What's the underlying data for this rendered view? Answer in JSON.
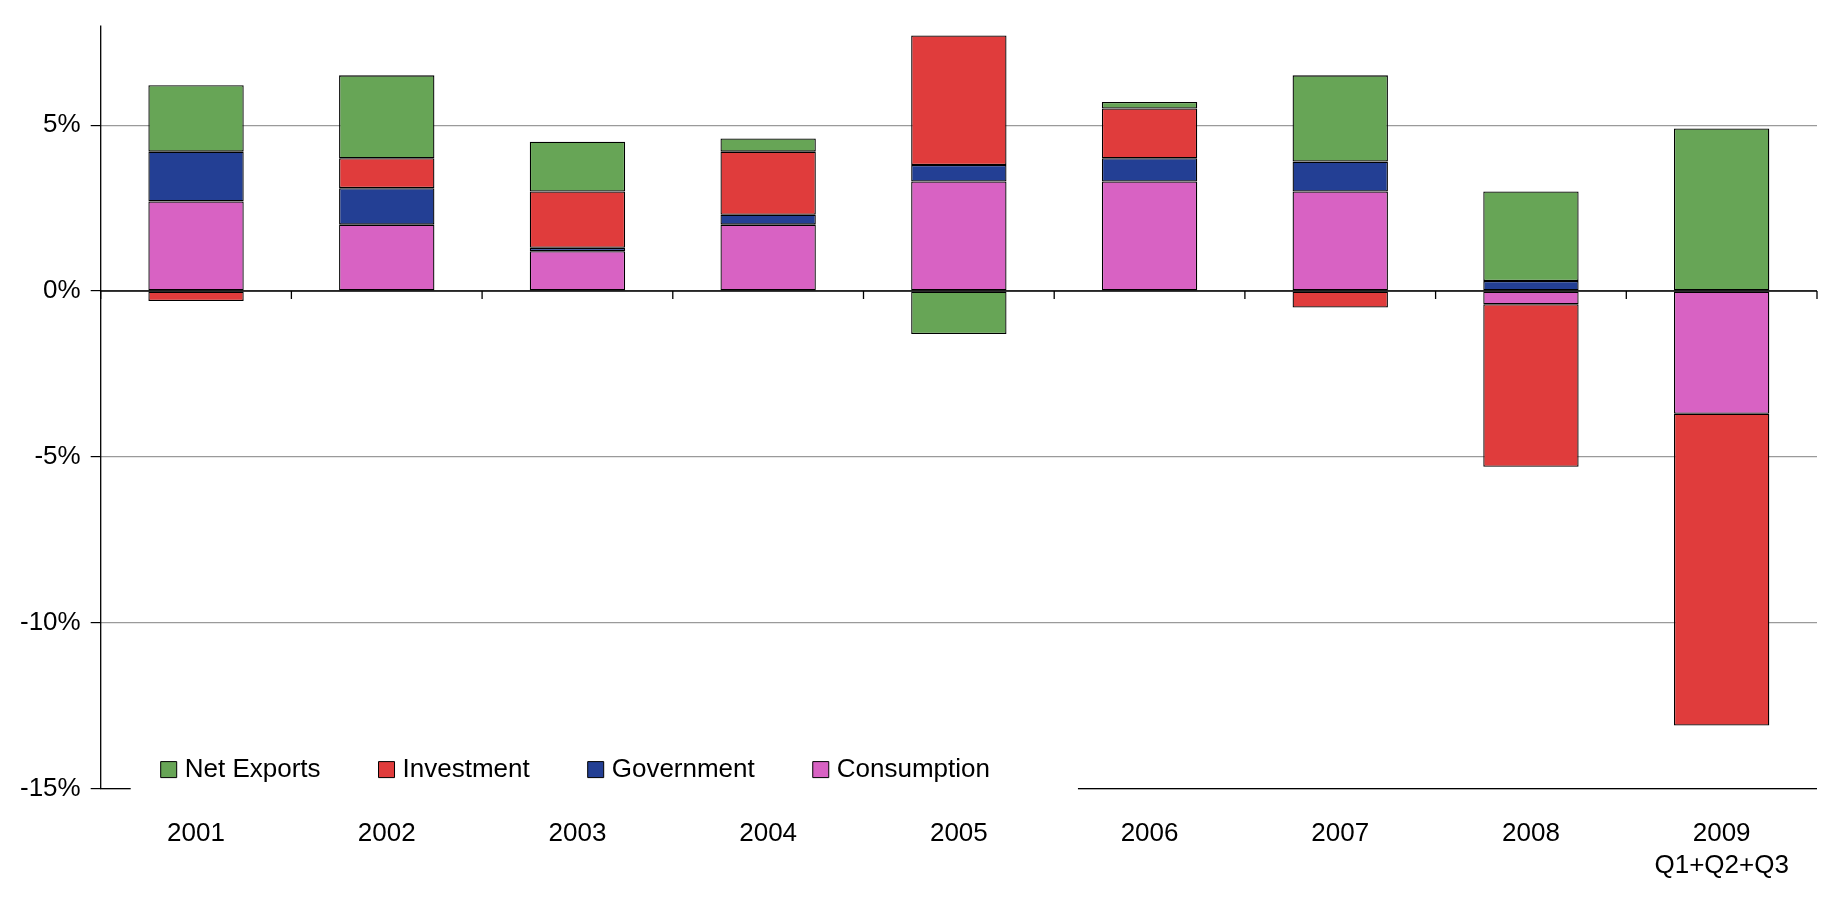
{
  "chart_data": {
    "type": "bar",
    "stacked": true,
    "categories": [
      "2001",
      "2002",
      "2003",
      "2004",
      "2005",
      "2006",
      "2007",
      "2008",
      "2009\nQ1+Q2+Q3"
    ],
    "series": [
      {
        "name": "Consumption",
        "color": "#d862c3",
        "values": [
          2.7,
          2.0,
          1.2,
          2.0,
          3.3,
          3.3,
          3.0,
          -0.4,
          -3.7
        ]
      },
      {
        "name": "Government",
        "color": "#233f94",
        "values": [
          1.5,
          1.1,
          0.1,
          0.3,
          0.5,
          0.7,
          0.9,
          0.3,
          0
        ]
      },
      {
        "name": "Investment",
        "color": "#e03c3c",
        "values": [
          -0.3,
          0.9,
          1.7,
          1.9,
          3.9,
          1.5,
          -0.5,
          -4.9,
          -9.4
        ]
      },
      {
        "name": "Net Exports",
        "color": "#67a556",
        "values": [
          2.0,
          2.5,
          1.5,
          0.4,
          -1.3,
          0.2,
          2.6,
          2.7,
          4.9
        ]
      }
    ],
    "ylim": [
      -15,
      8
    ],
    "yticks": [
      {
        "value": -15,
        "label": "-15%"
      },
      {
        "value": -10,
        "label": "-10%"
      },
      {
        "value": -5,
        "label": "-5%"
      },
      {
        "value": 0,
        "label": "0%"
      },
      {
        "value": 5,
        "label": "5%"
      }
    ],
    "grid": "y",
    "legend": "bottom left"
  }
}
